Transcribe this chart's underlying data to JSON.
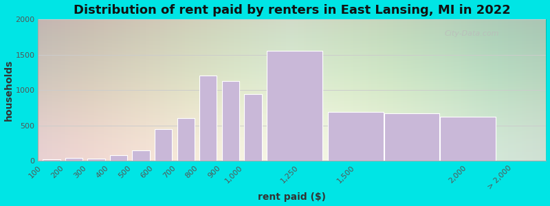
{
  "title": "Distribution of rent paid by renters in East Lansing, MI in 2022",
  "xlabel": "rent paid ($)",
  "ylabel": "households",
  "bar_lefts": [
    100,
    200,
    300,
    400,
    500,
    600,
    700,
    800,
    900,
    1000,
    1100,
    1375,
    1625,
    1875
  ],
  "bar_widths": [
    80,
    80,
    80,
    80,
    80,
    80,
    80,
    80,
    80,
    80,
    250,
    250,
    250,
    250
  ],
  "bar_values": [
    20,
    40,
    30,
    80,
    150,
    450,
    600,
    1200,
    1130,
    940,
    1550,
    690,
    670,
    620
  ],
  "bar_color": "#c9b8d8",
  "bar_edge_color": "#ffffff",
  "ylim": [
    0,
    2000
  ],
  "yticks": [
    0,
    500,
    1000,
    1500,
    2000
  ],
  "xtick_positions": [
    100,
    200,
    300,
    400,
    500,
    600,
    700,
    800,
    900,
    1000,
    1250,
    1500,
    2000,
    2200
  ],
  "xtick_labels": [
    "100",
    "200",
    "300",
    "400",
    "500",
    "600",
    "700",
    "800",
    "900",
    "1,000",
    "1,250",
    "1,500",
    "2,000",
    "> 2,000"
  ],
  "background_outer": "#00e5e5",
  "background_inner_left": "#d4edda",
  "background_inner_right": "#f5f5f5",
  "grid_color": "#cccccc",
  "title_fontsize": 13,
  "axis_label_fontsize": 10,
  "tick_fontsize": 8,
  "watermark_text": "City-Data.com",
  "watermark_color": "#bbbbbb"
}
